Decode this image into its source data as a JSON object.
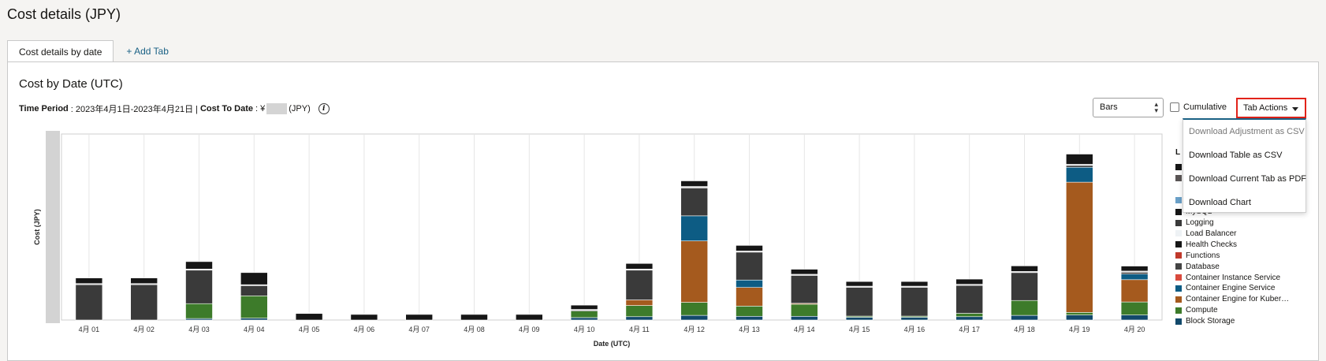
{
  "header": {
    "title": "Cost details (JPY)"
  },
  "tabs": [
    {
      "label": "Cost details by date"
    },
    {
      "label": "+ Add Tab"
    }
  ],
  "section": {
    "title": "Cost by Date (UTC)",
    "time_period_label": "Time Period",
    "time_period_value": ": 2023年4月1日-2023年4月21日 |",
    "cost_to_date_label": "Cost To Date",
    "cost_to_date_prefix": ": ¥",
    "cost_to_date_suffix": "(JPY)",
    "info_glyph": "i"
  },
  "controls": {
    "chart_type_selected": "Bars",
    "cumulative_label": "Cumulative",
    "cumulative_checked": false,
    "tab_actions_label": "Tab Actions"
  },
  "tab_actions_menu": [
    {
      "label": "Download Adjustment as CSV",
      "disabled": true
    },
    {
      "label": "Download Table as CSV",
      "disabled": false
    },
    {
      "label": "Download Current Tab as PDF",
      "disabled": false
    },
    {
      "label": "Download Chart",
      "disabled": false
    }
  ],
  "legend": {
    "title_visible": "L",
    "partial_item": "MySQL",
    "items": [
      {
        "name": "Logging",
        "color": "#3a3a3a"
      },
      {
        "name": "Load Balancer",
        "color": "#eef2f5"
      },
      {
        "name": "Health Checks",
        "color": "#161616"
      },
      {
        "name": "Functions",
        "color": "#c0392b"
      },
      {
        "name": "Database",
        "color": "#444444"
      },
      {
        "name": "Container Instance Service",
        "color": "#d94a3d"
      },
      {
        "name": "Container Engine Service",
        "color": "#0d5c84"
      },
      {
        "name": "Container Engine for Kuber…",
        "color": "#a55a1e"
      },
      {
        "name": "Compute",
        "color": "#3d7b2a"
      },
      {
        "name": "Block Storage",
        "color": "#12496b"
      }
    ]
  },
  "chart_data": {
    "type": "bar",
    "stacked": true,
    "xlabel": "Date (UTC)",
    "ylabel": "Cost (JPY)",
    "ylim": [
      0,
      100
    ],
    "y_tick_labels_masked": true,
    "categories": [
      "4月 01",
      "4月 02",
      "4月 03",
      "4月 04",
      "4月 05",
      "4月 06",
      "4月 07",
      "4月 08",
      "4月 09",
      "4月 10",
      "4月 11",
      "4月 12",
      "4月 13",
      "4月 14",
      "4月 15",
      "4月 16",
      "4月 17",
      "4月 18",
      "4月 19",
      "4月 20"
    ],
    "series": [
      {
        "name": "Block Storage",
        "color": "#12496b",
        "values": [
          0,
          0,
          0.8,
          1,
          0,
          0,
          0,
          0,
          0,
          1.3,
          1.8,
          2.5,
          2,
          2,
          1.5,
          1.5,
          1.8,
          2.5,
          2.7,
          2.7
        ]
      },
      {
        "name": "Compute",
        "color": "#3d7b2a",
        "values": [
          0,
          0,
          8,
          12,
          0,
          0,
          0,
          0,
          0,
          3.5,
          6,
          7,
          5.5,
          6.5,
          0.6,
          0.6,
          1.8,
          8,
          1.4,
          7
        ]
      },
      {
        "name": "Container Engine for Kuber…",
        "color": "#a55a1e",
        "values": [
          0,
          0,
          0,
          0,
          0,
          0,
          0,
          0,
          0,
          0,
          3,
          33,
          10,
          0.5,
          0,
          0,
          0,
          0,
          70,
          12
        ]
      },
      {
        "name": "Container Engine Service",
        "color": "#0d5c84",
        "values": [
          0,
          0,
          0,
          0,
          0,
          0,
          0,
          0,
          0,
          0,
          0,
          13.5,
          4,
          0,
          0,
          0,
          0,
          0,
          8,
          3
        ]
      },
      {
        "name": "Logging",
        "color": "#3a3a3a",
        "values": [
          19,
          19,
          18,
          5.5,
          0,
          0,
          0,
          0,
          0,
          0.5,
          16,
          15,
          15,
          15,
          15.5,
          15.5,
          15,
          15,
          1,
          1
        ]
      },
      {
        "name": "MySQL",
        "color": "#dbdbdb",
        "values": [
          0.6,
          0.6,
          0.6,
          0.5,
          0,
          0,
          0,
          0,
          0,
          0.4,
          0.6,
          0.8,
          0.6,
          0.6,
          0.6,
          0.6,
          0.6,
          0.6,
          0.6,
          0.6
        ]
      },
      {
        "name": "Health Checks",
        "color": "#161616",
        "values": [
          3,
          3,
          4,
          6.5,
          3.5,
          3,
          3,
          3,
          3,
          2.3,
          3,
          3,
          3,
          2.7,
          2.5,
          2.5,
          2.8,
          3,
          5.5,
          2.7
        ]
      }
    ]
  }
}
